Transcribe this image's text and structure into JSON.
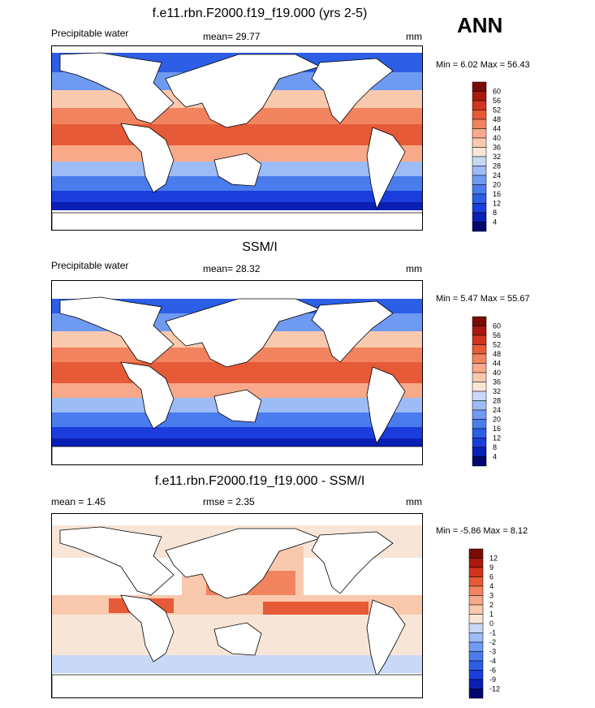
{
  "header": {
    "season": "ANN"
  },
  "panels": [
    {
      "title": "f.e11.rbn.F2000.f19_f19.000 (yrs 2-5)",
      "left": "Precipitable water",
      "center": "mean=  29.77",
      "units": "mm",
      "minmax": "Min =  6.02 Max =  56.43"
    },
    {
      "title": "SSM/I",
      "left": "Precipitable water",
      "center": "mean=  28.32",
      "units": "mm",
      "minmax": "Min =  5.47 Max =  55.67"
    },
    {
      "title": "f.e11.rbn.F2000.f19_f19.000 - SSM/I",
      "left": "mean =   1.45",
      "center": "rmse =   2.35",
      "units": "mm",
      "minmax": "Min =  -5.86 Max =   8.12"
    }
  ],
  "chart_data": [
    {
      "type": "heatmap",
      "title": "f.e11.rbn.F2000.f19_f19.000 (yrs 2-5)",
      "variable": "Precipitable water",
      "units": "mm",
      "mean": 29.77,
      "min": 6.02,
      "max": 56.43,
      "colorbar_levels": [
        4,
        8,
        12,
        16,
        20,
        24,
        28,
        32,
        36,
        40,
        44,
        48,
        52,
        56,
        60
      ],
      "colorbar_colors": [
        "#00086e",
        "#0a1fb4",
        "#1a3ddc",
        "#2c5ee6",
        "#4a7cee",
        "#6f9af2",
        "#9dbcf5",
        "#c8d8f6",
        "#f7e6d8",
        "#f9c9ae",
        "#f7a98a",
        "#f1845e",
        "#e65a38",
        "#d2341c",
        "#aa1a0c",
        "#7a0c06"
      ]
    },
    {
      "type": "heatmap",
      "title": "SSM/I",
      "variable": "Precipitable water",
      "units": "mm",
      "mean": 28.32,
      "min": 5.47,
      "max": 55.67,
      "colorbar_levels": [
        4,
        8,
        12,
        16,
        20,
        24,
        28,
        32,
        36,
        40,
        44,
        48,
        52,
        56,
        60
      ],
      "colorbar_colors": [
        "#00086e",
        "#0a1fb4",
        "#1a3ddc",
        "#2c5ee6",
        "#4a7cee",
        "#6f9af2",
        "#9dbcf5",
        "#c8d8f6",
        "#f7e6d8",
        "#f9c9ae",
        "#f7a98a",
        "#f1845e",
        "#e65a38",
        "#d2341c",
        "#aa1a0c",
        "#7a0c06"
      ]
    },
    {
      "type": "heatmap",
      "title": "f.e11.rbn.F2000.f19_f19.000 - SSM/I",
      "units": "mm",
      "mean": 1.45,
      "rmse": 2.35,
      "min": -5.86,
      "max": 8.12,
      "colorbar_levels": [
        -12,
        -9,
        -6,
        -4,
        -3,
        -2,
        -1,
        0,
        1,
        2,
        3,
        4,
        6,
        9,
        12
      ],
      "colorbar_colors": [
        "#00086e",
        "#0a1fb4",
        "#1a3ddc",
        "#2c5ee6",
        "#4a7cee",
        "#6f9af2",
        "#9dbcf5",
        "#c8d8f6",
        "#f7e6d8",
        "#f9c9ae",
        "#f7a98a",
        "#f1845e",
        "#e65a38",
        "#d2341c",
        "#aa1a0c",
        "#7a0c06"
      ]
    }
  ]
}
